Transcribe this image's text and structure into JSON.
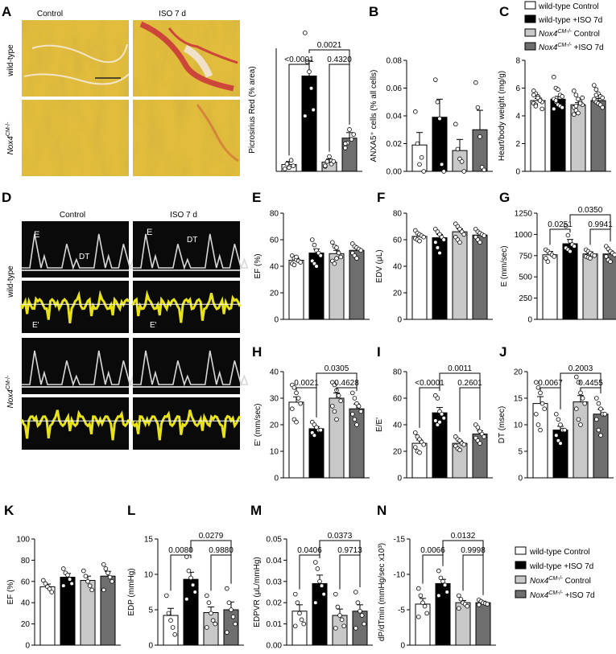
{
  "colors": {
    "wt_control": "#ffffff",
    "wt_iso": "#000000",
    "nox_control": "#c8c8c8",
    "nox_iso": "#6e6e6e",
    "histology_yellow": "#e2bd3d",
    "fibrosis_red": "#c8283a",
    "echo_bg": "#0a0a0a",
    "echo_trace": "#d8d8d8",
    "tissue_doppler": "#e8e21a"
  },
  "legend_top": {
    "entries": [
      {
        "text": "wild-type Control",
        "pre": "",
        "sup": "",
        "post": "wild-type Control"
      },
      {
        "text": "wild-type +ISO 7d",
        "pre": "",
        "sup": "",
        "post": "wild-type +ISO 7d"
      },
      {
        "text": "Nox4CM-/- Control",
        "pre": "Nox4",
        "sup": "CM-/-",
        "post": " Control"
      },
      {
        "text": "Nox4CM-/- +ISO 7d",
        "pre": "Nox4",
        "sup": "CM-/-",
        "post": " +ISO 7d"
      }
    ]
  },
  "legend_bottom": {
    "entries": [
      {
        "text": "wild-type Control",
        "pre": "",
        "sup": "",
        "post": "wild-type Control"
      },
      {
        "text": "wild-type +ISO 7d",
        "pre": "",
        "sup": "",
        "post": "wild-type +ISO 7d"
      },
      {
        "text": "Nox4CM-/- Control",
        "pre": "Nox4",
        "sup": "CM-/-",
        "post": " Control"
      },
      {
        "text": "Nox4CM-/- +ISO 7d",
        "pre": "Nox4",
        "sup": "CM-/-",
        "post": " +ISO 7d"
      }
    ]
  },
  "panel_A": {
    "letter": "A",
    "col_labels": [
      "Control",
      "ISO 7 d"
    ],
    "row_labels": [
      {
        "pre": "wild-type",
        "sup": ""
      },
      {
        "pre": "Nox4",
        "sup": "CM-/-"
      }
    ]
  },
  "panel_D": {
    "letter": "D",
    "col_labels": [
      "Control",
      "ISO 7 d"
    ],
    "row_labels": [
      {
        "pre": "wild-type",
        "sup": ""
      },
      {
        "pre": "Nox4",
        "sup": "CM-/-"
      }
    ],
    "annotations": {
      "E": "E",
      "DT": "DT",
      "Eprime": "E'"
    }
  },
  "chart_data": [
    {
      "id": "A",
      "letter": "",
      "type": "bar",
      "ylabel": "Picrosirius Red (% area)",
      "ylim": [
        0,
        20
      ],
      "yticks": [],
      "ticklabels": [],
      "values": [
        1.1,
        15.5,
        1.5,
        5.4
      ],
      "errors": [
        0.5,
        2.5,
        0.5,
        0.9
      ],
      "points": [
        [
          0.4,
          1.2,
          0.6,
          1.8,
          0.9
        ],
        [
          22.5,
          17.8,
          16.2,
          13.5,
          10.0,
          9.0
        ],
        [
          0.8,
          1.6,
          2.4,
          1.2,
          1.6,
          0.9
        ],
        [
          3.8,
          4.6,
          6.8,
          5.2,
          6.0,
          4.5
        ]
      ],
      "comparisons": [
        {
          "a": 0,
          "b": 1,
          "label": "<0.0001",
          "level": 0
        },
        {
          "a": 2,
          "b": 3,
          "label": "0.4320",
          "level": 0
        },
        {
          "a": 1,
          "b": 3,
          "label": "0.0021",
          "level": 1
        }
      ]
    },
    {
      "id": "B",
      "letter": "B",
      "type": "bar",
      "ylabel": "ANXA5⁺ cells (% all cells)",
      "ylim": [
        0,
        0.08
      ],
      "yticks": [
        0,
        0.02,
        0.04,
        0.06,
        0.08
      ],
      "ticklabels": [
        "0.00",
        "0.02",
        "0.04",
        "0.06",
        "0.08"
      ],
      "values": [
        0.019,
        0.039,
        0.015,
        0.03
      ],
      "errors": [
        0.009,
        0.013,
        0.008,
        0.014
      ],
      "points": [
        [
          0.043,
          0.02,
          0.005,
          0.01,
          0.0
        ],
        [
          0.066,
          0.05,
          0.038,
          0.005,
          0.0
        ],
        [
          0.034,
          0.016,
          0.009,
          0.007,
          0.0
        ],
        [
          0.064,
          0.046,
          0.025,
          0.003,
          0.001
        ]
      ],
      "comparisons": []
    },
    {
      "id": "C",
      "letter": "C",
      "type": "bar",
      "ylabel": "Heart/body weight (mg/g)",
      "ylim": [
        0,
        8
      ],
      "yticks": [
        0,
        2,
        4,
        6,
        8
      ],
      "ticklabels": [
        "0",
        "2",
        "4",
        "6",
        "8"
      ],
      "values": [
        5.1,
        5.2,
        4.8,
        5.1
      ],
      "errors": [
        0.15,
        0.2,
        0.15,
        0.15
      ],
      "points": [
        [
          5.8,
          5.6,
          5.4,
          5.2,
          5.0,
          4.9,
          4.8,
          5.3,
          5.1,
          4.5,
          5.5,
          4.7
        ],
        [
          6.8,
          6.0,
          5.9,
          5.5,
          5.4,
          5.2,
          5.0,
          4.8,
          4.7,
          4.6,
          4.5,
          5.1
        ],
        [
          5.8,
          5.5,
          5.2,
          5.0,
          4.8,
          4.6,
          4.4,
          4.2,
          4.9,
          5.3,
          4.1,
          4.7
        ],
        [
          6.2,
          5.9,
          5.6,
          5.4,
          5.3,
          5.1,
          5.0,
          4.9,
          4.8,
          4.6,
          5.2,
          5.5
        ]
      ],
      "comparisons": []
    },
    {
      "id": "E",
      "letter": "E",
      "type": "bar",
      "ylabel": "EF (%)",
      "ylim": [
        0,
        80
      ],
      "yticks": [
        0,
        20,
        40,
        60,
        80
      ],
      "ticklabels": [
        "0",
        "20",
        "40",
        "60",
        "80"
      ],
      "values": [
        44.5,
        50,
        49.5,
        52
      ],
      "errors": [
        1.5,
        3,
        2.5,
        1.8
      ],
      "points": [
        [
          48,
          46,
          45,
          44,
          43,
          42,
          41,
          47
        ],
        [
          60,
          56,
          52,
          50,
          48,
          44,
          42,
          40
        ],
        [
          58,
          55,
          54,
          50,
          47,
          44,
          42,
          46
        ],
        [
          57,
          55,
          54,
          53,
          52,
          50,
          48,
          46
        ]
      ],
      "comparisons": []
    },
    {
      "id": "F",
      "letter": "F",
      "type": "bar",
      "ylabel": "EDV (μL)",
      "ylim": [
        0,
        80
      ],
      "yticks": [
        0,
        20,
        40,
        60,
        80
      ],
      "ticklabels": [
        "0",
        "20",
        "40",
        "60",
        "80"
      ],
      "values": [
        62.5,
        61.5,
        66,
        63.5
      ],
      "errors": [
        1.2,
        2.5,
        2.2,
        1.5
      ],
      "points": [
        [
          67,
          65,
          64,
          63,
          62,
          61,
          60,
          59
        ],
        [
          68,
          66,
          64,
          62,
          60,
          58,
          54,
          50
        ],
        [
          72,
          70,
          68,
          66,
          64,
          62,
          60,
          58
        ],
        [
          68,
          66,
          65,
          64,
          63,
          62,
          60,
          58
        ]
      ],
      "comparisons": []
    },
    {
      "id": "G",
      "letter": "G",
      "type": "bar",
      "ylabel": "E (mm/sec)",
      "ylim": [
        0,
        1250
      ],
      "yticks": [
        0,
        250,
        500,
        750,
        1000,
        1250
      ],
      "ticklabels": [
        "0",
        "250",
        "500",
        "750",
        "1000",
        "1250"
      ],
      "values": [
        760,
        890,
        770,
        770
      ],
      "errors": [
        40,
        50,
        25,
        35
      ],
      "points": [
        [
          820,
          800,
          780,
          760,
          740,
          720,
          680
        ],
        [
          1100,
          990,
          920,
          880,
          860,
          840,
          820,
          800
        ],
        [
          820,
          800,
          780,
          760,
          750,
          740,
          730,
          720
        ],
        [
          860,
          830,
          800,
          780,
          760,
          740,
          700,
          680
        ]
      ],
      "comparisons": [
        {
          "a": 0,
          "b": 1,
          "label": "0.0251",
          "level": 0
        },
        {
          "a": 2,
          "b": 3,
          "label": "0.9941",
          "level": 0
        },
        {
          "a": 1,
          "b": 3,
          "label": "0.0350",
          "level": 1
        }
      ]
    },
    {
      "id": "H",
      "letter": "H",
      "type": "bar",
      "ylabel": "E' (mm/sec)",
      "ylim": [
        0,
        40
      ],
      "yticks": [
        0,
        10,
        20,
        30,
        40
      ],
      "ticklabels": [
        "0",
        "10",
        "20",
        "30",
        "40"
      ],
      "values": [
        28.5,
        18.5,
        30,
        26
      ],
      "errors": [
        2,
        0.8,
        2,
        1.8
      ],
      "points": [
        [
          35,
          34,
          32,
          30,
          28,
          26,
          22,
          21
        ],
        [
          21,
          20,
          19,
          18,
          18,
          17,
          16,
          19
        ],
        [
          36,
          35,
          33,
          31,
          29,
          27,
          25,
          22
        ],
        [
          32,
          30,
          28,
          27,
          25,
          24,
          22,
          20
        ]
      ],
      "comparisons": [
        {
          "a": 0,
          "b": 1,
          "label": "0.0021",
          "level": 0
        },
        {
          "a": 2,
          "b": 3,
          "label": "0.4628",
          "level": 0
        },
        {
          "a": 1,
          "b": 3,
          "label": "0.0305",
          "level": 1
        }
      ]
    },
    {
      "id": "I",
      "letter": "I",
      "type": "bar",
      "ylabel": "E/E'",
      "ylim": [
        0,
        80
      ],
      "yticks": [
        0,
        20,
        40,
        60,
        80
      ],
      "ticklabels": [
        "0",
        "20",
        "40",
        "60",
        "80"
      ],
      "values": [
        26,
        49,
        26,
        33
      ],
      "errors": [
        2.5,
        4,
        1.8,
        2.5
      ],
      "points": [
        [
          34,
          31,
          29,
          27,
          25,
          23,
          20,
          19
        ],
        [
          62,
          60,
          50,
          48,
          45,
          43,
          40,
          42
        ],
        [
          31,
          29,
          28,
          26,
          25,
          24,
          22,
          21
        ],
        [
          40,
          38,
          35,
          33,
          31,
          30,
          28,
          26
        ]
      ],
      "comparisons": [
        {
          "a": 0,
          "b": 1,
          "label": "<0.0001",
          "level": 0
        },
        {
          "a": 2,
          "b": 3,
          "label": "0.2601",
          "level": 0
        },
        {
          "a": 1,
          "b": 3,
          "label": "0.0011",
          "level": 1
        }
      ]
    },
    {
      "id": "J",
      "letter": "J",
      "type": "bar",
      "ylabel": "DT (msec)",
      "ylim": [
        0,
        20
      ],
      "yticks": [
        0,
        5,
        10,
        15,
        20
      ],
      "ticklabels": [
        "0",
        "5",
        "10",
        "15",
        "20"
      ],
      "values": [
        14,
        9,
        14.3,
        12
      ],
      "errors": [
        1.3,
        0.7,
        1.2,
        0.9
      ],
      "points": [
        [
          18,
          17,
          16,
          14,
          13,
          12,
          10,
          9
        ],
        [
          12,
          11,
          10,
          9,
          9,
          8,
          7,
          6.5
        ],
        [
          19,
          18,
          16,
          15,
          14,
          13,
          11,
          10
        ],
        [
          15,
          14,
          13,
          12,
          12,
          11,
          9,
          8
        ]
      ],
      "comparisons": [
        {
          "a": 0,
          "b": 1,
          "label": "0.0067",
          "level": 0
        },
        {
          "a": 2,
          "b": 3,
          "label": "0.4455",
          "level": 0
        },
        {
          "a": 1,
          "b": 3,
          "label": "0.2003",
          "level": 1
        }
      ]
    },
    {
      "id": "K",
      "letter": "K",
      "type": "bar",
      "ylabel": "EF (%)",
      "ylim": [
        0,
        100
      ],
      "yticks": [
        0,
        20,
        40,
        60,
        80,
        100
      ],
      "ticklabels": [
        "0",
        "20",
        "40",
        "60",
        "80",
        "100"
      ],
      "values": [
        55,
        64,
        61,
        65
      ],
      "errors": [
        2.5,
        3.5,
        4,
        4.5
      ],
      "points": [
        [
          61,
          58,
          55,
          53,
          50
        ],
        [
          72,
          68,
          66,
          62,
          58,
          56
        ],
        [
          70,
          65,
          60,
          56,
          52
        ],
        [
          76,
          72,
          68,
          64,
          60,
          52
        ]
      ],
      "comparisons": []
    },
    {
      "id": "L",
      "letter": "L",
      "type": "bar",
      "ylabel": "EDP (mmHg)",
      "ylim": [
        0,
        15
      ],
      "yticks": [
        0,
        5,
        10,
        15
      ],
      "ticklabels": [
        "0",
        "5",
        "10",
        "15"
      ],
      "values": [
        4.2,
        9.3,
        4.6,
        5
      ],
      "errors": [
        1,
        1,
        0.8,
        1.1
      ],
      "points": [
        [
          7,
          4.5,
          3.5,
          2.5,
          1.5
        ],
        [
          12.5,
          10.5,
          9.5,
          8.5,
          7.5,
          6.5
        ],
        [
          7,
          6,
          4.5,
          3.5,
          3,
          2.5
        ],
        [
          8,
          6,
          5,
          4,
          3,
          1.8
        ]
      ],
      "comparisons": [
        {
          "a": 0,
          "b": 1,
          "label": "0.0080",
          "level": 0
        },
        {
          "a": 2,
          "b": 3,
          "label": "0.9880",
          "level": 0
        },
        {
          "a": 1,
          "b": 3,
          "label": "0.0279",
          "level": 1
        }
      ]
    },
    {
      "id": "M",
      "letter": "M",
      "type": "bar",
      "ylabel": "EDPVR (μL/mmHg)",
      "ylim": [
        0,
        0.05
      ],
      "yticks": [
        0,
        0.01,
        0.02,
        0.03,
        0.04,
        0.05
      ],
      "ticklabels": [
        "0.00",
        "0.01",
        "0.02",
        "0.03",
        "0.04",
        "0.05"
      ],
      "values": [
        0.016,
        0.029,
        0.014,
        0.016
      ],
      "errors": [
        0.003,
        0.004,
        0.003,
        0.003
      ],
      "points": [
        [
          0.024,
          0.02,
          0.015,
          0.012,
          0.01,
          0.009
        ],
        [
          0.039,
          0.036,
          0.03,
          0.028,
          0.024,
          0.02
        ],
        [
          0.024,
          0.018,
          0.014,
          0.012,
          0.009,
          0.008
        ],
        [
          0.025,
          0.02,
          0.016,
          0.014,
          0.01,
          0.008
        ]
      ],
      "comparisons": [
        {
          "a": 0,
          "b": 1,
          "label": "0.0406",
          "level": 0
        },
        {
          "a": 2,
          "b": 3,
          "label": "0.9713",
          "level": 0
        },
        {
          "a": 1,
          "b": 3,
          "label": "0.0373",
          "level": 1
        }
      ]
    },
    {
      "id": "N",
      "letter": "N",
      "type": "bar",
      "ylabel": "dP/dTmin (mmHg/sec x10³)",
      "ylim": [
        0,
        15
      ],
      "yticks": [
        0,
        5,
        10,
        15
      ],
      "ticklabels": [
        "0",
        "-5",
        "-10",
        "-15"
      ],
      "values": [
        5.8,
        8.7,
        6,
        6
      ],
      "errors": [
        0.8,
        0.6,
        0.3,
        0.2
      ],
      "points": [
        [
          8,
          7,
          6,
          5.5,
          4.5,
          4
        ],
        [
          10.5,
          9.5,
          9,
          8.5,
          7.5,
          7
        ],
        [
          7,
          6.5,
          6,
          5.8,
          5.5,
          5.2
        ],
        [
          6.4,
          6.2,
          6,
          5.9,
          5.8,
          5.7
        ]
      ],
      "comparisons": [
        {
          "a": 0,
          "b": 1,
          "label": "0.0066",
          "level": 0
        },
        {
          "a": 2,
          "b": 3,
          "label": "0.9998",
          "level": 0
        },
        {
          "a": 1,
          "b": 3,
          "label": "0.0132",
          "level": 1
        }
      ]
    }
  ]
}
